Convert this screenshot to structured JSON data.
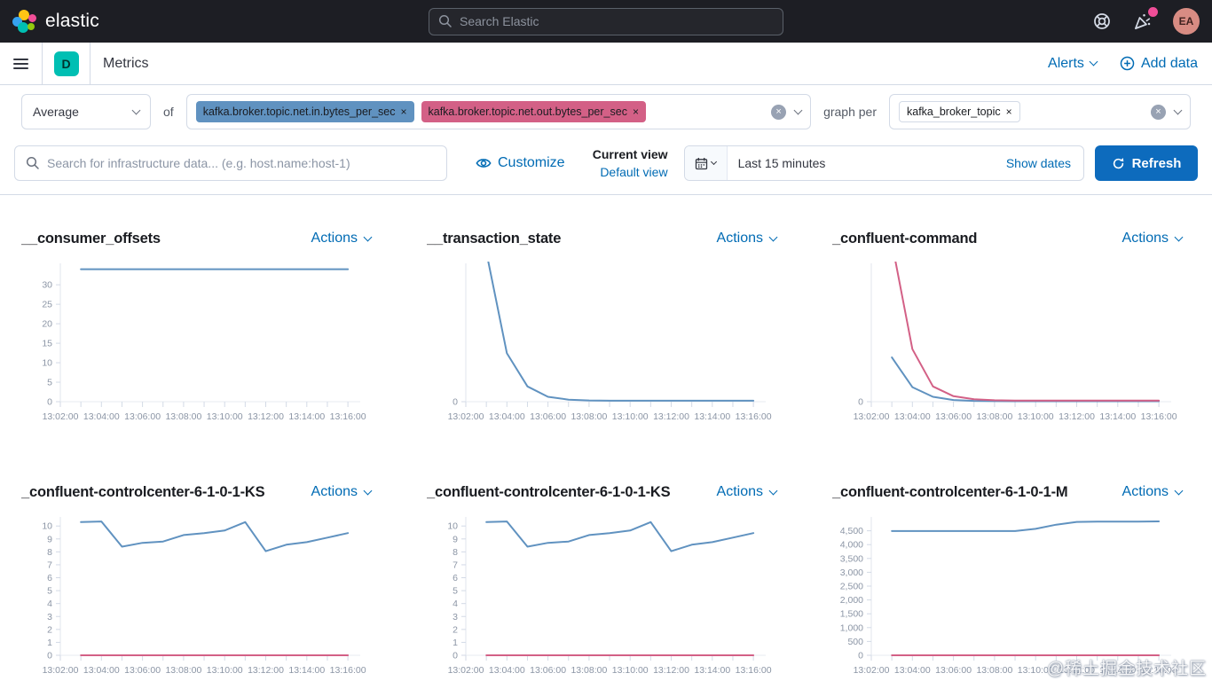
{
  "glyphs": {
    "close": "×"
  },
  "header": {
    "brand": "elastic",
    "search_placeholder": "Search Elastic",
    "avatar_initials": "EA"
  },
  "nav": {
    "deployment_badge": "D",
    "page_title": "Metrics",
    "alerts_label": "Alerts",
    "add_data_label": "Add data"
  },
  "filters": {
    "aggregation_value": "Average",
    "of_label": "of",
    "metric_badges": [
      {
        "label": "kafka.broker.topic.net.in.bytes_per_sec",
        "color": "#6092c0"
      },
      {
        "label": "kafka.broker.topic.net.out.bytes_per_sec",
        "color": "#d36086"
      }
    ],
    "graph_per_label": "graph per",
    "group_badge": "kafka_broker_topic"
  },
  "toolbar": {
    "search_placeholder": "Search for infrastructure data... (e.g. host.name:host-1)",
    "customize_label": "Customize",
    "current_view_label": "Current view",
    "default_view_label": "Default view",
    "time_range": "Last 15 minutes",
    "show_dates_label": "Show dates",
    "refresh_label": "Refresh"
  },
  "colors": {
    "accent_blue": "#006bb4",
    "series_blue": "#6092c0",
    "series_pink": "#d36086"
  },
  "watermark": "@稀土掘金技术社区",
  "chart_data": [
    {
      "type": "line",
      "title": "__consumer_offsets",
      "actions_label": "Actions",
      "ylim": [
        0,
        35.5
      ],
      "y_ticks": [
        {
          "v": 30,
          "label": "30"
        },
        {
          "v": 25,
          "label": "25"
        },
        {
          "v": 20,
          "label": "20"
        },
        {
          "v": 15,
          "label": "15"
        },
        {
          "v": 10,
          "label": "10"
        },
        {
          "v": 5,
          "label": "5"
        },
        {
          "v": 0,
          "label": "0"
        }
      ],
      "xlim": [
        2,
        16.6
      ],
      "x_ticks": [
        {
          "m": 2,
          "label": "13:02:00"
        },
        {
          "m": 4,
          "label": "13:04:00"
        },
        {
          "m": 6,
          "label": "13:06:00"
        },
        {
          "m": 8,
          "label": "13:08:00"
        },
        {
          "m": 10,
          "label": "13:10:00"
        },
        {
          "m": 12,
          "label": "13:12:00"
        },
        {
          "m": 14,
          "label": "13:14:00"
        },
        {
          "m": 16,
          "label": "13:16:00"
        }
      ],
      "x": [
        3,
        4,
        5,
        6,
        7,
        8,
        9,
        10,
        11,
        12,
        13,
        14,
        15,
        16
      ],
      "series": [
        {
          "name": "kafka.broker.topic.net.in.bytes_per_sec",
          "color": "#6092c0",
          "values": [
            34,
            34,
            34,
            34,
            34,
            34,
            34,
            34,
            34,
            34,
            34,
            34,
            34,
            34
          ]
        }
      ]
    },
    {
      "type": "line",
      "title": "__transaction_state",
      "actions_label": "Actions",
      "ylim": [
        0,
        100
      ],
      "y_ticks": [
        {
          "v": 0,
          "label": "0"
        }
      ],
      "xlim": [
        2,
        16.6
      ],
      "x_ticks": [
        {
          "m": 2,
          "label": "13:02:00"
        },
        {
          "m": 4,
          "label": "13:04:00"
        },
        {
          "m": 6,
          "label": "13:06:00"
        },
        {
          "m": 8,
          "label": "13:08:00"
        },
        {
          "m": 10,
          "label": "13:10:00"
        },
        {
          "m": 12,
          "label": "13:12:00"
        },
        {
          "m": 14,
          "label": "13:14:00"
        },
        {
          "m": 16,
          "label": "13:16:00"
        }
      ],
      "x": [
        3,
        4,
        5,
        6,
        7,
        8,
        9,
        10,
        11,
        12,
        13,
        14,
        15,
        16
      ],
      "series": [
        {
          "name": "kafka.broker.topic.net.in.bytes_per_sec",
          "color": "#6092c0",
          "values": [
            108,
            35,
            11,
            3.5,
            1.5,
            0.9,
            0.7,
            0.7,
            0.7,
            0.7,
            0.7,
            0.7,
            0.7,
            0.7
          ]
        }
      ]
    },
    {
      "type": "line",
      "title": "_confluent-command",
      "actions_label": "Actions",
      "ylim": [
        0,
        100
      ],
      "y_ticks": [
        {
          "v": 0,
          "label": "0"
        }
      ],
      "xlim": [
        2,
        16.6
      ],
      "x_ticks": [
        {
          "m": 2,
          "label": "13:02:00"
        },
        {
          "m": 4,
          "label": "13:04:00"
        },
        {
          "m": 6,
          "label": "13:06:00"
        },
        {
          "m": 8,
          "label": "13:08:00"
        },
        {
          "m": 10,
          "label": "13:10:00"
        },
        {
          "m": 12,
          "label": "13:12:00"
        },
        {
          "m": 14,
          "label": "13:14:00"
        },
        {
          "m": 16,
          "label": "13:16:00"
        }
      ],
      "x": [
        3,
        4,
        5,
        6,
        7,
        8,
        9,
        10,
        11,
        12,
        13,
        14,
        15,
        16
      ],
      "series": [
        {
          "name": "kafka.broker.topic.net.in.bytes_per_sec",
          "color": "#6092c0",
          "values": [
            32,
            10.5,
            3.5,
            1.2,
            0.6,
            0.4,
            0.35,
            0.35,
            0.35,
            0.35,
            0.35,
            0.35,
            0.35,
            0.35
          ]
        },
        {
          "name": "kafka.broker.topic.net.out.bytes_per_sec",
          "color": "#d36086",
          "values": [
            115,
            38,
            11,
            4,
            1.8,
            1,
            0.8,
            0.8,
            0.8,
            0.8,
            0.8,
            0.8,
            0.8,
            0.8
          ]
        }
      ]
    },
    {
      "type": "line",
      "title": "_confluent-controlcenter-6-1-0-1-KS",
      "actions_label": "Actions",
      "ylim": [
        0,
        10.7
      ],
      "y_ticks": [
        {
          "v": 10,
          "label": "10"
        },
        {
          "v": 9,
          "label": "9"
        },
        {
          "v": 8,
          "label": "8"
        },
        {
          "v": 7,
          "label": "7"
        },
        {
          "v": 6,
          "label": "6"
        },
        {
          "v": 5,
          "label": "5"
        },
        {
          "v": 4,
          "label": "4"
        },
        {
          "v": 3,
          "label": "3"
        },
        {
          "v": 2,
          "label": "2"
        },
        {
          "v": 1,
          "label": "1"
        },
        {
          "v": 0,
          "label": "0"
        }
      ],
      "xlim": [
        2,
        16.6
      ],
      "x_ticks": [
        {
          "m": 2,
          "label": "13:02:00"
        },
        {
          "m": 4,
          "label": "13:04:00"
        },
        {
          "m": 6,
          "label": "13:06:00"
        },
        {
          "m": 8,
          "label": "13:08:00"
        },
        {
          "m": 10,
          "label": "13:10:00"
        },
        {
          "m": 12,
          "label": "13:12:00"
        },
        {
          "m": 14,
          "label": "13:14:00"
        },
        {
          "m": 16,
          "label": "13:16:00"
        }
      ],
      "x": [
        3,
        4,
        5,
        6,
        7,
        8,
        9,
        10,
        11,
        12,
        13,
        14,
        15,
        16
      ],
      "series": [
        {
          "name": "kafka.broker.topic.net.in.bytes_per_sec",
          "color": "#6092c0",
          "values": [
            10.3,
            10.35,
            8.4,
            8.7,
            8.8,
            9.3,
            9.45,
            9.65,
            10.3,
            8.05,
            8.55,
            8.75,
            9.1,
            9.45
          ]
        },
        {
          "name": "kafka.broker.topic.net.out.bytes_per_sec",
          "color": "#d36086",
          "values": [
            0,
            0,
            0,
            0,
            0,
            0,
            0,
            0,
            0,
            0,
            0,
            0,
            0,
            0
          ]
        }
      ]
    },
    {
      "type": "line",
      "title": "_confluent-controlcenter-6-1-0-1-KS",
      "actions_label": "Actions",
      "ylim": [
        0,
        10.7
      ],
      "y_ticks": [
        {
          "v": 10,
          "label": "10"
        },
        {
          "v": 9,
          "label": "9"
        },
        {
          "v": 8,
          "label": "8"
        },
        {
          "v": 7,
          "label": "7"
        },
        {
          "v": 6,
          "label": "6"
        },
        {
          "v": 5,
          "label": "5"
        },
        {
          "v": 4,
          "label": "4"
        },
        {
          "v": 3,
          "label": "3"
        },
        {
          "v": 2,
          "label": "2"
        },
        {
          "v": 1,
          "label": "1"
        },
        {
          "v": 0,
          "label": "0"
        }
      ],
      "xlim": [
        2,
        16.6
      ],
      "x_ticks": [
        {
          "m": 2,
          "label": "13:02:00"
        },
        {
          "m": 4,
          "label": "13:04:00"
        },
        {
          "m": 6,
          "label": "13:06:00"
        },
        {
          "m": 8,
          "label": "13:08:00"
        },
        {
          "m": 10,
          "label": "13:10:00"
        },
        {
          "m": 12,
          "label": "13:12:00"
        },
        {
          "m": 14,
          "label": "13:14:00"
        },
        {
          "m": 16,
          "label": "13:16:00"
        }
      ],
      "x": [
        3,
        4,
        5,
        6,
        7,
        8,
        9,
        10,
        11,
        12,
        13,
        14,
        15,
        16
      ],
      "series": [
        {
          "name": "kafka.broker.topic.net.in.bytes_per_sec",
          "color": "#6092c0",
          "values": [
            10.3,
            10.35,
            8.4,
            8.7,
            8.8,
            9.3,
            9.45,
            9.65,
            10.3,
            8.05,
            8.55,
            8.75,
            9.1,
            9.45
          ]
        },
        {
          "name": "kafka.broker.topic.net.out.bytes_per_sec",
          "color": "#d36086",
          "values": [
            0,
            0,
            0,
            0,
            0,
            0,
            0,
            0,
            0,
            0,
            0,
            0,
            0,
            0
          ]
        }
      ]
    },
    {
      "type": "line",
      "title": "_confluent-controlcenter-6-1-0-1-M",
      "actions_label": "Actions",
      "ylim": [
        0,
        5000
      ],
      "y_ticks": [
        {
          "v": 4500,
          "label": "4,500"
        },
        {
          "v": 4000,
          "label": "4,000"
        },
        {
          "v": 3500,
          "label": "3,500"
        },
        {
          "v": 3000,
          "label": "3,000"
        },
        {
          "v": 2500,
          "label": "2,500"
        },
        {
          "v": 2000,
          "label": "2,000"
        },
        {
          "v": 1500,
          "label": "1,500"
        },
        {
          "v": 1000,
          "label": "1,000"
        },
        {
          "v": 500,
          "label": "500"
        },
        {
          "v": 0,
          "label": "0"
        }
      ],
      "xlim": [
        2,
        16.6
      ],
      "x_ticks": [
        {
          "m": 2,
          "label": "13:02:00"
        },
        {
          "m": 4,
          "label": "13:04:00"
        },
        {
          "m": 6,
          "label": "13:06:00"
        },
        {
          "m": 8,
          "label": "13:08:00"
        },
        {
          "m": 10,
          "label": "13:10:00"
        },
        {
          "m": 12,
          "label": "13:12:00"
        },
        {
          "m": 14,
          "label": "13:14:00"
        },
        {
          "m": 16,
          "label": "13:16:00"
        }
      ],
      "x": [
        3,
        4,
        5,
        6,
        7,
        8,
        9,
        10,
        11,
        12,
        13,
        14,
        15,
        16
      ],
      "series": [
        {
          "name": "kafka.broker.topic.net.in.bytes_per_sec",
          "color": "#6092c0",
          "values": [
            4490,
            4490,
            4490,
            4490,
            4490,
            4490,
            4490,
            4570,
            4720,
            4820,
            4830,
            4830,
            4830,
            4840
          ]
        },
        {
          "name": "kafka.broker.topic.net.out.bytes_per_sec",
          "color": "#d36086",
          "values": [
            0,
            0,
            0,
            0,
            0,
            0,
            0,
            0,
            0,
            0,
            0,
            0,
            0,
            0
          ]
        }
      ]
    }
  ]
}
